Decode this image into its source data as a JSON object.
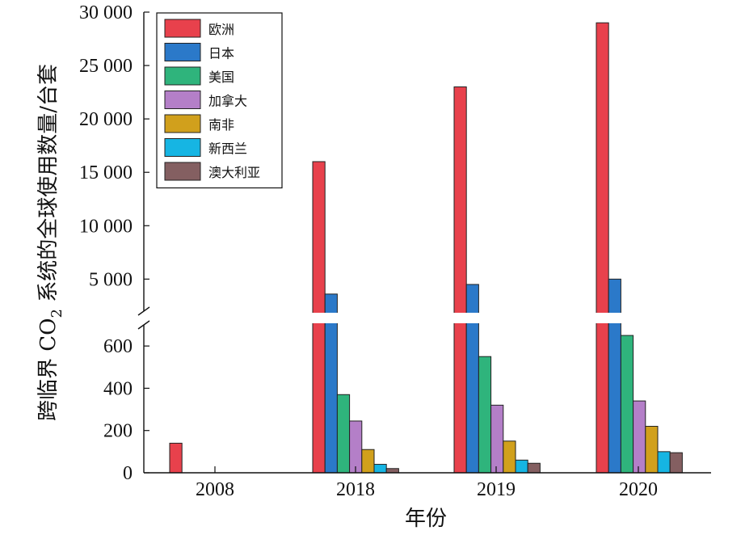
{
  "chart_data": {
    "type": "bar",
    "xlabel": "年份",
    "ylabel_main": "跨临界 CO",
    "ylabel_sub": "2",
    "ylabel_rest": " 系统的全球使用数量/台套",
    "categories": [
      "2008",
      "2018",
      "2019",
      "2020"
    ],
    "axis_break": true,
    "ylim_lower": [
      0,
      700
    ],
    "ylim_upper": [
      2000,
      30000
    ],
    "lower_ticks": [
      0,
      200,
      400,
      600
    ],
    "upper_ticks": [
      5000,
      10000,
      15000,
      20000,
      25000,
      30000
    ],
    "lower_tick_labels": [
      "0",
      "200",
      "400",
      "600"
    ],
    "upper_tick_labels": [
      "5 000",
      "10 000",
      "15 000",
      "20 000",
      "25 000",
      "30 000"
    ],
    "legend_position": "top-left",
    "series": [
      {
        "name": "欧洲",
        "color": "#e8414c",
        "values": [
          140,
          16000,
          23000,
          29000
        ]
      },
      {
        "name": "日本",
        "color": "#2b79c9",
        "values": [
          0,
          3600,
          4500,
          5000
        ]
      },
      {
        "name": "美国",
        "color": "#2fb47c",
        "values": [
          0,
          370,
          550,
          650
        ]
      },
      {
        "name": "加拿大",
        "color": "#b47fc8",
        "values": [
          0,
          245,
          320,
          340
        ]
      },
      {
        "name": "南非",
        "color": "#d1a01c",
        "values": [
          0,
          110,
          150,
          220
        ]
      },
      {
        "name": "新西兰",
        "color": "#16b5e3",
        "values": [
          0,
          40,
          60,
          100
        ]
      },
      {
        "name": "澳大利亚",
        "color": "#845f61",
        "values": [
          0,
          20,
          45,
          95
        ]
      }
    ]
  }
}
